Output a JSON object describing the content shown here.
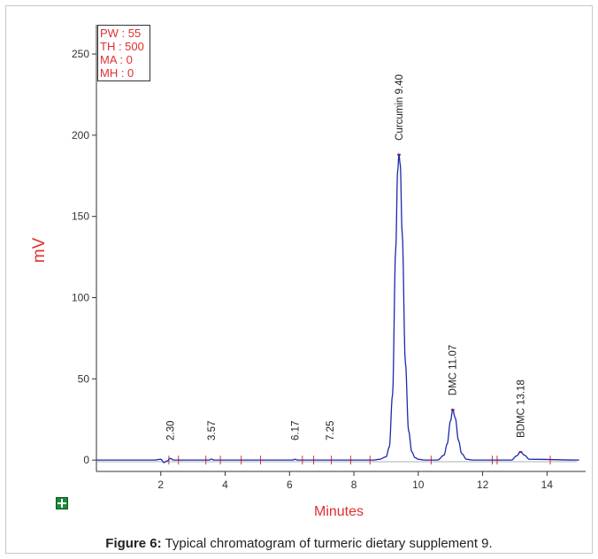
{
  "chart_data": {
    "type": "line",
    "xlabel": "Minutes",
    "ylabel": "mV",
    "xlim": [
      0,
      15.2
    ],
    "ylim": [
      -7,
      268
    ],
    "x_ticks": [
      2,
      4,
      6,
      8,
      10,
      12,
      14
    ],
    "y_ticks": [
      0,
      50,
      100,
      150,
      200,
      250
    ],
    "peaks": [
      {
        "label": "2.30",
        "rt": 2.3
      },
      {
        "label": "3.57",
        "rt": 3.57
      },
      {
        "label": "6.17",
        "rt": 6.17
      },
      {
        "label": "7.25",
        "rt": 7.25
      },
      {
        "label": "Curcumin 9.40",
        "rt": 9.4,
        "height": 188
      },
      {
        "label": "DMC 11.07",
        "rt": 11.07,
        "height": 31
      },
      {
        "label": "BDMC 13.18",
        "rt": 13.18,
        "height": 5
      }
    ],
    "series": [
      {
        "x": [
          0,
          1.8,
          2.0,
          2.1,
          2.2,
          2.3,
          2.4,
          3.5,
          3.57,
          3.65,
          6.1,
          6.17,
          6.25,
          8.6,
          8.8,
          9.0,
          9.1,
          9.2,
          9.3,
          9.36,
          9.4,
          9.44,
          9.5,
          9.6,
          9.7,
          9.8,
          9.9,
          10.0,
          10.2,
          10.6,
          10.8,
          10.9,
          11.0,
          11.07,
          11.15,
          11.25,
          11.35,
          11.5,
          11.7,
          12.9,
          13.05,
          13.18,
          13.3,
          13.45,
          15.0
        ],
        "y": [
          0,
          0,
          0.5,
          -1.5,
          -0.5,
          1.0,
          0,
          0,
          0.6,
          0,
          0,
          0.5,
          0,
          0,
          0.5,
          2,
          8,
          40,
          130,
          178,
          188,
          182,
          140,
          60,
          18,
          5,
          1.5,
          0.5,
          0,
          0,
          3,
          10,
          24,
          31,
          26,
          12,
          4,
          0.5,
          0,
          0,
          2.5,
          5,
          3,
          0.5,
          0
        ]
      }
    ],
    "grid": false,
    "colors": {
      "trace": "#1a2aa8",
      "markers": "#e03030",
      "axis_title": "#e03030",
      "peak_top": "#e03030"
    }
  },
  "params": [
    "PW : 55",
    "TH : 500",
    "MA : 0",
    "MH : 0"
  ],
  "caption": {
    "bold": "Figure 6:",
    "text": " Typical chromatogram of turmeric dietary supplement 9."
  }
}
